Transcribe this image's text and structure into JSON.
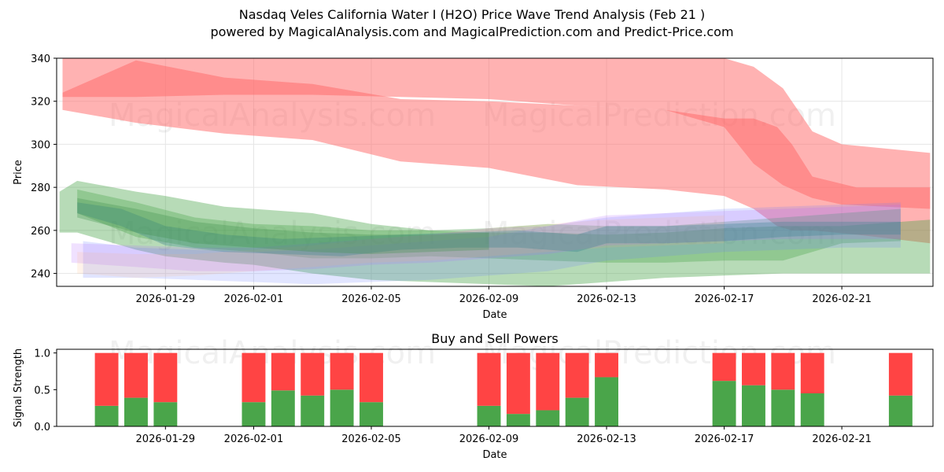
{
  "page": {
    "title_line1": "Nasdaq Veles California Water I (H2O) Price Wave Trend Analysis (Feb 21 )",
    "title_line2": "powered by MagicalAnalysis.com and MagicalPrediction.com and Predict-Price.com",
    "watermarks": [
      "MagicalAnalysis.com",
      "MagicalPrediction.com"
    ]
  },
  "chart_data": [
    {
      "type": "area",
      "title": "",
      "xlabel": "Date",
      "ylabel": "Price",
      "xlim": [
        -2.7,
        27.1
      ],
      "ylim": [
        234,
        340
      ],
      "x_tick_labels": [
        {
          "day": 1,
          "label": "2026-01-29"
        },
        {
          "day": 4,
          "label": "2026-02-01"
        },
        {
          "day": 8,
          "label": "2026-02-05"
        },
        {
          "day": 12,
          "label": "2026-02-09"
        },
        {
          "day": 16,
          "label": "2026-02-13"
        },
        {
          "day": 20,
          "label": "2026-02-17"
        },
        {
          "day": 24,
          "label": "2026-02-21"
        }
      ],
      "y_ticks": [
        240,
        260,
        280,
        300,
        320,
        340
      ],
      "grid": true,
      "bands": [
        {
          "name": "red-wave-upper",
          "color": "#ff6666",
          "opacity": 0.5,
          "x": [
            -2.5,
            0,
            3,
            6,
            9,
            12,
            15,
            18,
            20,
            21,
            21.8,
            22.3,
            23,
            24.5,
            27
          ],
          "low": [
            316,
            310,
            305,
            302,
            292,
            289,
            281,
            279,
            276,
            270,
            262,
            260,
            260,
            258,
            254
          ],
          "high": [
            324,
            339,
            331,
            328,
            321,
            320,
            318,
            316,
            312,
            312,
            308,
            300,
            285,
            280,
            280
          ]
        },
        {
          "name": "red-wave-lower",
          "color": "#ff6666",
          "opacity": 0.5,
          "x": [
            -2.5,
            0,
            3,
            6,
            9,
            12,
            15,
            18,
            20,
            21,
            22,
            23,
            24,
            27
          ],
          "low": [
            322,
            322,
            323,
            323,
            322,
            321,
            318,
            316,
            308,
            291,
            281,
            275,
            272,
            270
          ],
          "high": [
            340,
            340,
            340,
            340,
            340,
            340,
            340,
            340,
            340,
            336,
            326,
            306,
            300,
            296
          ]
        },
        {
          "name": "green-wave-wide",
          "color": "#4aa54a",
          "opacity": 0.4,
          "x": [
            -2.6,
            -2,
            0,
            1,
            3,
            4,
            6,
            8,
            10,
            12,
            14,
            16,
            18,
            20,
            22,
            24,
            27
          ],
          "low": [
            259,
            259,
            251,
            248,
            245,
            244,
            240,
            237,
            236,
            235,
            234,
            236,
            238,
            239,
            240,
            240,
            240
          ],
          "high": [
            278,
            283,
            278,
            276,
            271,
            270,
            268,
            263,
            260,
            259,
            259,
            258,
            259,
            261,
            262,
            262,
            265
          ]
        },
        {
          "name": "green-wave-mid",
          "color": "#4aa54a",
          "opacity": 0.35,
          "x": [
            -2,
            0,
            2,
            4,
            6,
            8,
            10,
            12,
            14,
            16,
            18,
            20,
            22,
            24,
            26
          ],
          "low": [
            268,
            257,
            252,
            250,
            247,
            247,
            248,
            247,
            246,
            245,
            245,
            246,
            246,
            254,
            255
          ],
          "high": [
            279,
            273,
            266,
            263,
            262,
            260,
            260,
            261,
            263,
            262,
            262,
            264,
            266,
            268,
            270
          ]
        },
        {
          "name": "blue-wave",
          "color": "#6b7fff",
          "opacity": 0.2,
          "x": [
            -1.8,
            0,
            2,
            4,
            6,
            8,
            10,
            12,
            14,
            16,
            18,
            20,
            22,
            24,
            26
          ],
          "low": [
            238,
            238,
            237,
            236,
            235,
            236,
            237,
            239,
            241,
            246,
            248,
            250,
            251,
            252,
            252
          ],
          "high": [
            255,
            252,
            251,
            250,
            251,
            253,
            255,
            257,
            262,
            266,
            268,
            270,
            271,
            272,
            273
          ]
        },
        {
          "name": "purple-wave",
          "color": "#b46bff",
          "opacity": 0.2,
          "x": [
            -2.2,
            0,
            2,
            4,
            6,
            8,
            10,
            12,
            14,
            16,
            18,
            20,
            22,
            24,
            26
          ],
          "low": [
            245,
            243,
            241,
            241,
            242,
            244,
            245,
            247,
            249,
            253,
            254,
            255,
            256,
            256,
            256
          ],
          "high": [
            254,
            253,
            252,
            252,
            254,
            256,
            258,
            261,
            262,
            267,
            268,
            269,
            270,
            271,
            272
          ]
        },
        {
          "name": "orange-wave",
          "color": "#ffb070",
          "opacity": 0.15,
          "x": [
            -2,
            0,
            2,
            4,
            6,
            8,
            10,
            12,
            14,
            16,
            18,
            20
          ],
          "low": [
            240,
            238,
            239,
            241,
            243,
            245,
            246,
            248,
            250,
            252,
            253,
            254
          ],
          "high": [
            250,
            249,
            249,
            251,
            253,
            256,
            258,
            261,
            263,
            265,
            266,
            267
          ]
        },
        {
          "name": "teal-wave",
          "color": "#2f7f8f",
          "opacity": 0.3,
          "x": [
            -2,
            -0.5,
            1,
            3,
            5,
            7,
            9,
            11,
            13,
            15,
            16,
            18,
            20,
            22,
            24,
            26
          ],
          "low": [
            268,
            262,
            253,
            250,
            249,
            248,
            251,
            252,
            252,
            250,
            254,
            254,
            255,
            257,
            258,
            258
          ],
          "high": [
            273,
            270,
            262,
            258,
            256,
            257,
            258,
            259,
            260,
            258,
            262,
            262,
            263,
            264,
            264,
            264
          ]
        },
        {
          "name": "dark-green-wave",
          "color": "#3a8f4a",
          "opacity": 0.3,
          "x": [
            -2,
            0,
            2,
            4,
            6,
            8,
            10,
            12
          ],
          "low": [
            266,
            259,
            254,
            252,
            250,
            249,
            250,
            251
          ],
          "high": [
            275,
            270,
            264,
            261,
            259,
            258,
            258,
            259
          ]
        }
      ]
    },
    {
      "type": "bar",
      "title": "Buy and Sell Powers",
      "xlabel": "Date",
      "ylabel": "Signal Strength",
      "xlim": [
        -2.7,
        27.1
      ],
      "ylim": [
        0,
        1.05
      ],
      "y_ticks": [
        0.0,
        0.5,
        1.0
      ],
      "y_tick_labels": [
        "0.0",
        "0.5",
        "1.0"
      ],
      "x_tick_labels": [
        {
          "day": 1,
          "label": "2026-01-29"
        },
        {
          "day": 4,
          "label": "2026-02-01"
        },
        {
          "day": 8,
          "label": "2026-02-05"
        },
        {
          "day": 12,
          "label": "2026-02-09"
        },
        {
          "day": 16,
          "label": "2026-02-13"
        },
        {
          "day": 20,
          "label": "2026-02-17"
        },
        {
          "day": 24,
          "label": "2026-02-21"
        }
      ],
      "series": [
        {
          "name": "Buy",
          "color": "#4aa54a"
        },
        {
          "name": "Sell",
          "color": "#ff4444"
        }
      ],
      "bars": [
        {
          "day": -1,
          "buy": 0.28
        },
        {
          "day": 0,
          "buy": 0.39
        },
        {
          "day": 1,
          "buy": 0.33
        },
        {
          "day": 4,
          "buy": 0.33
        },
        {
          "day": 5,
          "buy": 0.49
        },
        {
          "day": 6,
          "buy": 0.42
        },
        {
          "day": 7,
          "buy": 0.5
        },
        {
          "day": 8,
          "buy": 0.33
        },
        {
          "day": 12,
          "buy": 0.28
        },
        {
          "day": 13,
          "buy": 0.17
        },
        {
          "day": 14,
          "buy": 0.22
        },
        {
          "day": 15,
          "buy": 0.39
        },
        {
          "day": 16,
          "buy": 0.67
        },
        {
          "day": 20,
          "buy": 0.62
        },
        {
          "day": 21,
          "buy": 0.56
        },
        {
          "day": 22,
          "buy": 0.5
        },
        {
          "day": 23,
          "buy": 0.45
        },
        {
          "day": 26,
          "buy": 0.42
        }
      ]
    }
  ]
}
